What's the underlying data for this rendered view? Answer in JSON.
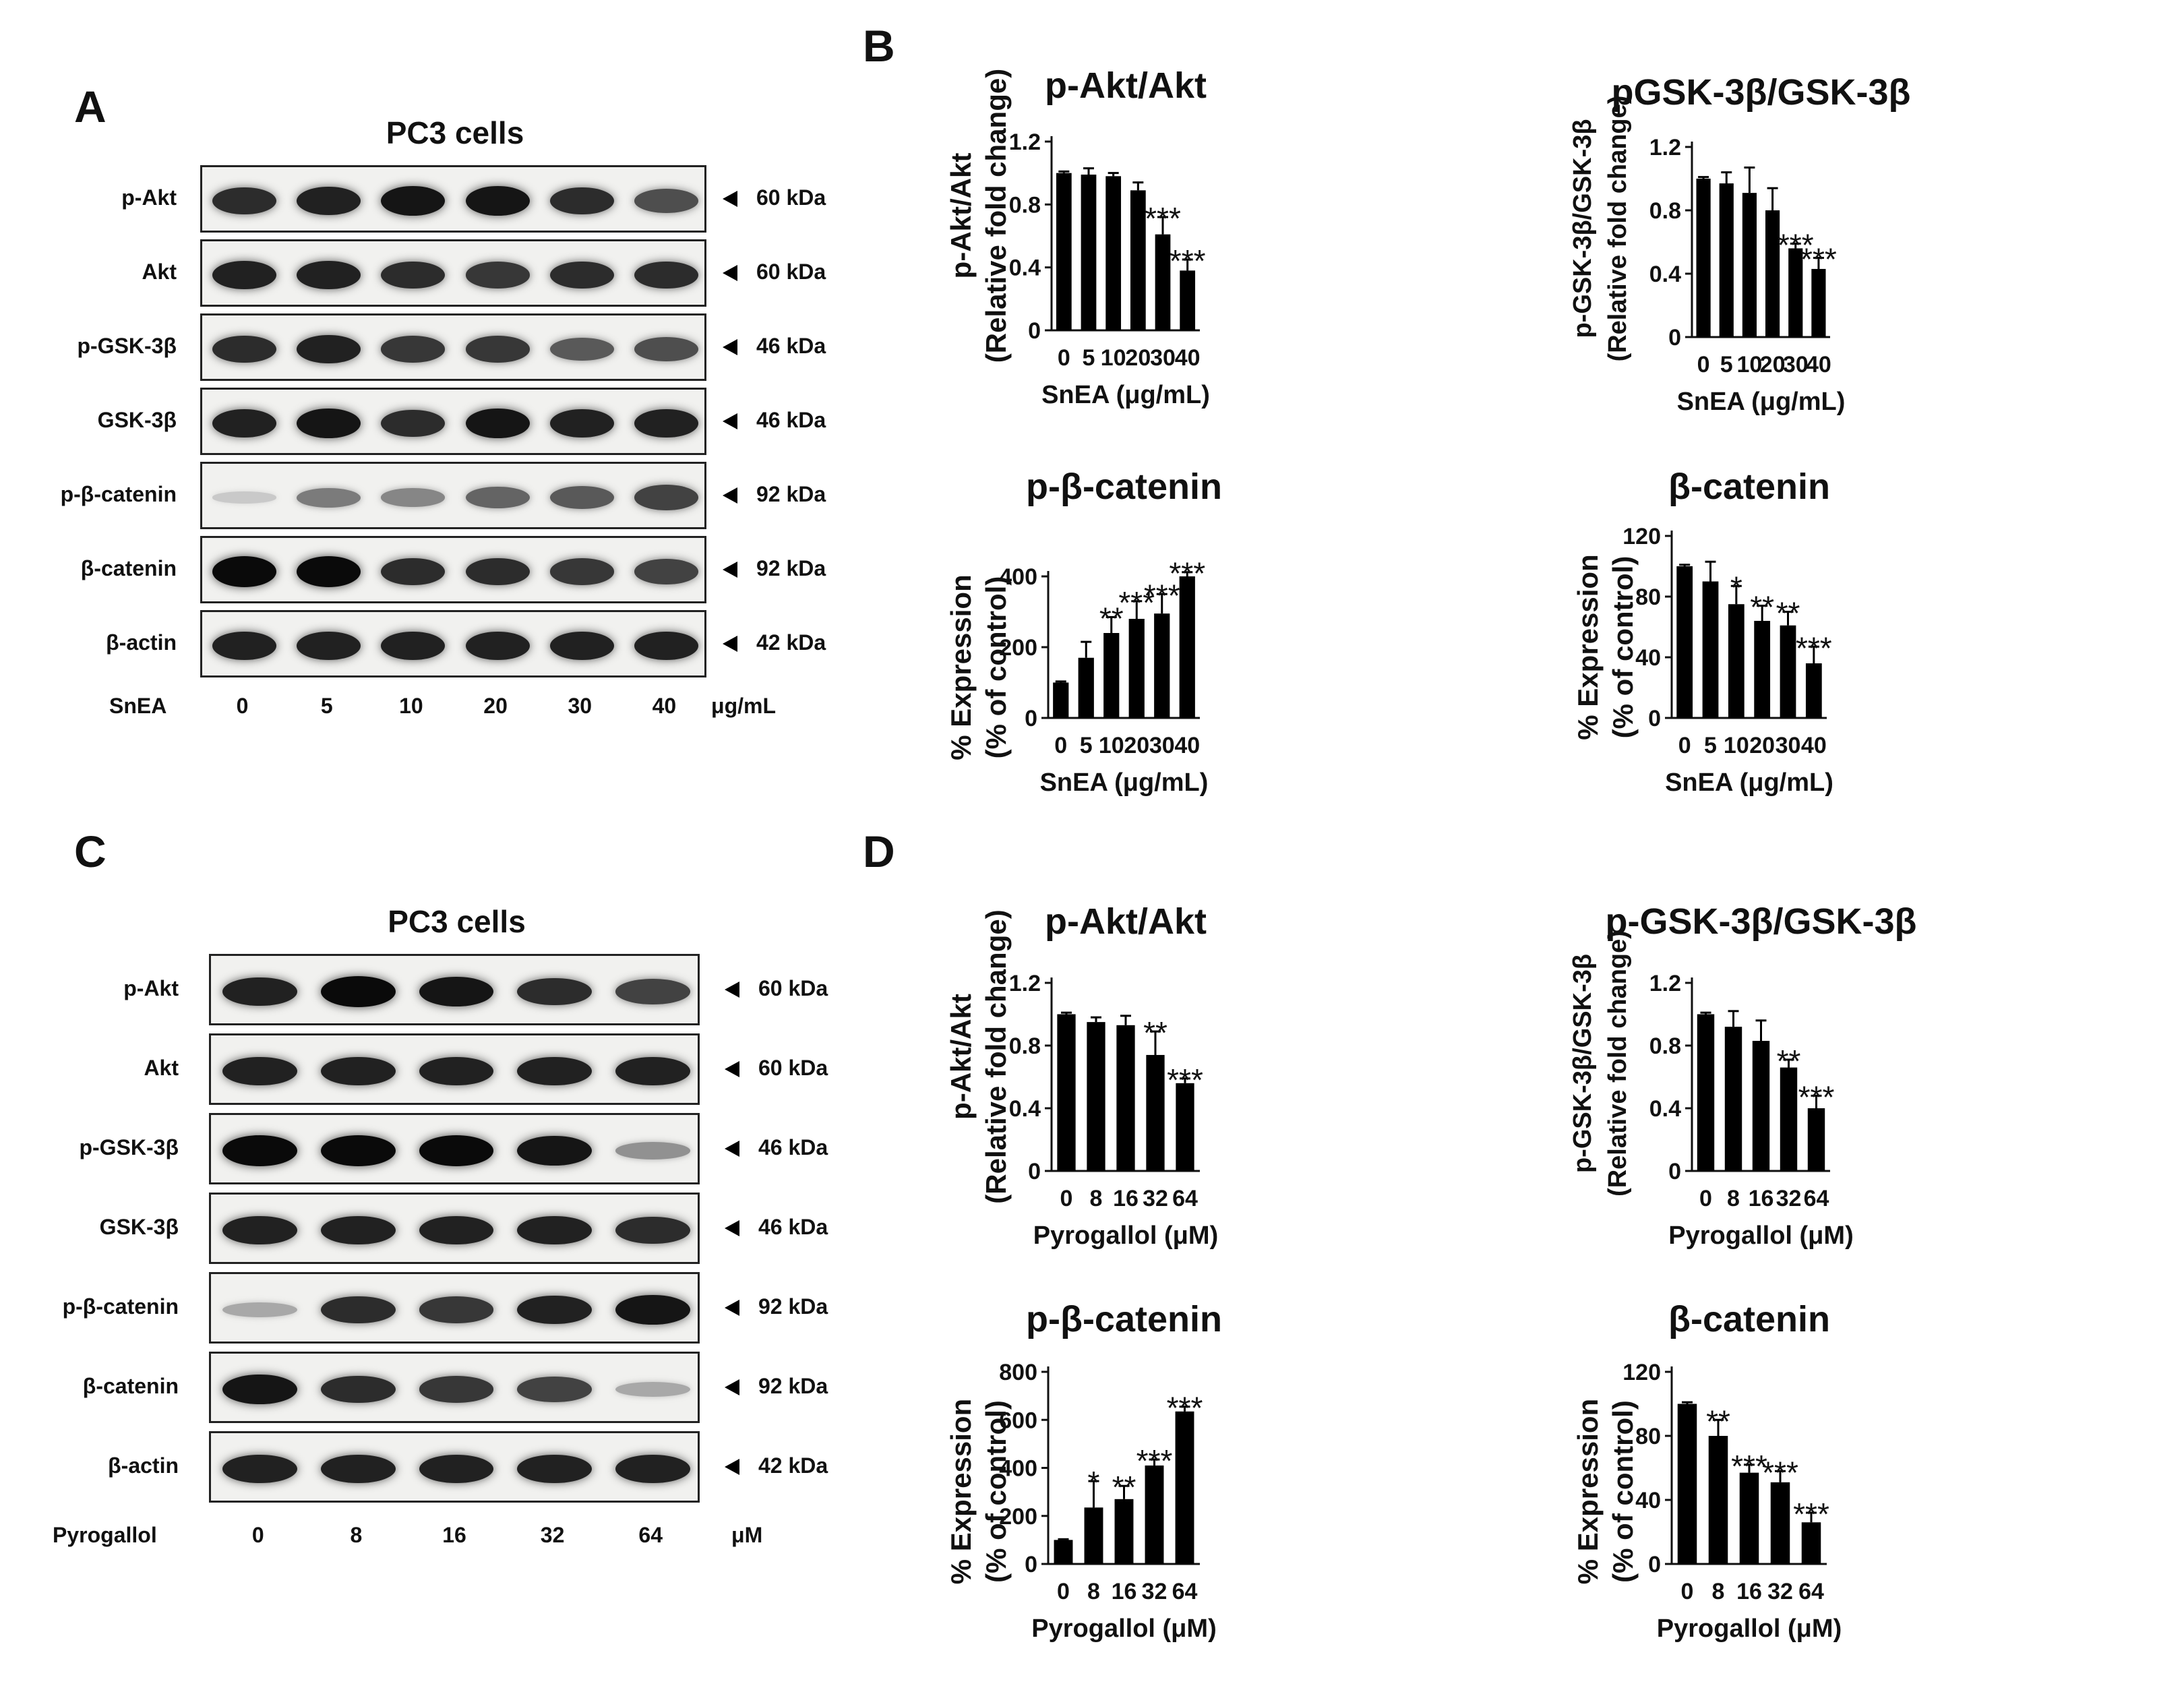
{
  "panels": {
    "A": {
      "letter": "A",
      "title": "PC3 cells",
      "rows": [
        {
          "label": "p-Akt",
          "kda": "60 kDa",
          "intensity": [
            0.85,
            0.9,
            0.95,
            0.95,
            0.85,
            0.7
          ]
        },
        {
          "label": "Akt",
          "kda": "60 kDa",
          "intensity": [
            0.9,
            0.9,
            0.85,
            0.8,
            0.85,
            0.85
          ]
        },
        {
          "label": "p-GSK-3β",
          "kda": "46 kDa",
          "intensity": [
            0.85,
            0.9,
            0.8,
            0.8,
            0.65,
            0.7
          ]
        },
        {
          "label": "GSK-3β",
          "kda": "46 kDa",
          "intensity": [
            0.9,
            0.95,
            0.85,
            0.95,
            0.9,
            0.9
          ]
        },
        {
          "label": "p-β-catenin",
          "kda": "92 kDa",
          "intensity": [
            0.15,
            0.5,
            0.45,
            0.6,
            0.65,
            0.75
          ]
        },
        {
          "label": "β-catenin",
          "kda": "92 kDa",
          "intensity": [
            1.0,
            1.0,
            0.85,
            0.85,
            0.8,
            0.75
          ]
        },
        {
          "label": "β-actin",
          "kda": "42 kDa",
          "intensity": [
            0.9,
            0.9,
            0.9,
            0.9,
            0.9,
            0.9
          ]
        }
      ],
      "treatment": "SnEA",
      "concentrations": [
        "0",
        "5",
        "10",
        "20",
        "30",
        "40"
      ],
      "unit": "μg/mL"
    },
    "B": {
      "letter": "B"
    },
    "C": {
      "letter": "C",
      "title": "PC3 cells",
      "rows": [
        {
          "label": "p-Akt",
          "kda": "60 kDa",
          "intensity": [
            0.9,
            1.0,
            0.95,
            0.85,
            0.75
          ]
        },
        {
          "label": "Akt",
          "kda": "60 kDa",
          "intensity": [
            0.9,
            0.9,
            0.9,
            0.9,
            0.9
          ]
        },
        {
          "label": "p-GSK-3β",
          "kda": "46 kDa",
          "intensity": [
            1.0,
            1.0,
            1.0,
            0.95,
            0.4
          ]
        },
        {
          "label": "GSK-3β",
          "kda": "46 kDa",
          "intensity": [
            0.9,
            0.9,
            0.9,
            0.9,
            0.85
          ]
        },
        {
          "label": "p-β-catenin",
          "kda": "92 kDa",
          "intensity": [
            0.3,
            0.85,
            0.8,
            0.9,
            0.95
          ]
        },
        {
          "label": "β-catenin",
          "kda": "92 kDa",
          "intensity": [
            0.95,
            0.85,
            0.8,
            0.75,
            0.3
          ]
        },
        {
          "label": "β-actin",
          "kda": "42 kDa",
          "intensity": [
            0.9,
            0.9,
            0.9,
            0.9,
            0.9
          ]
        }
      ],
      "treatment": "Pyrogallol",
      "concentrations": [
        "0",
        "8",
        "16",
        "32",
        "64"
      ],
      "unit": "μM"
    },
    "D": {
      "letter": "D"
    }
  },
  "chart_data": [
    {
      "type": "bar",
      "panel": "B",
      "title": "p-Akt/Akt",
      "ylabel": [
        "p-Akt/Akt",
        "(Relative fold change)"
      ],
      "xlabel": "SnEA (μg/mL)",
      "categories": [
        "0",
        "5",
        "10",
        "20",
        "30",
        "40"
      ],
      "values": [
        1.0,
        0.99,
        0.98,
        0.89,
        0.61,
        0.38
      ],
      "errors": [
        0.01,
        0.04,
        0.02,
        0.05,
        0.11,
        0.07
      ],
      "significance": [
        "",
        "",
        "",
        "",
        "***",
        "***"
      ],
      "ylim": [
        0,
        1.2
      ],
      "yticks": [
        "0",
        "0.4",
        "0.8",
        "1.2"
      ]
    },
    {
      "type": "bar",
      "panel": "B",
      "title": "pGSK-3β/GSK-3β",
      "ylabel": [
        "p-GSK-3β/GSK-3β",
        "(Relative fold change)"
      ],
      "xlabel": "SnEA (μg/mL)",
      "categories": [
        "0",
        "5",
        "10",
        "20",
        "30",
        "40"
      ],
      "values": [
        1.0,
        0.97,
        0.91,
        0.8,
        0.56,
        0.43
      ],
      "errors": [
        0.01,
        0.07,
        0.16,
        0.14,
        0.03,
        0.07
      ],
      "significance": [
        "",
        "",
        "",
        "",
        "***",
        "***"
      ],
      "ylim": [
        0,
        1.2
      ],
      "yticks": [
        "0",
        "0.4",
        "0.8",
        "1.2"
      ]
    },
    {
      "type": "bar",
      "panel": "B",
      "title": "p-β-catenin",
      "ylabel": [
        "% Expression",
        "(% of control)"
      ],
      "xlabel": "SnEA (μg/mL)",
      "categories": [
        "0",
        "5",
        "10",
        "20",
        "30",
        "40"
      ],
      "values": [
        100,
        170,
        240,
        280,
        295,
        400
      ],
      "errors": [
        3,
        45,
        45,
        50,
        55,
        12
      ],
      "significance": [
        "",
        "",
        "**",
        "***",
        "***",
        "***"
      ],
      "ylim": [
        0,
        400
      ],
      "yticks": [
        "0",
        "200",
        "400"
      ]
    },
    {
      "type": "bar",
      "panel": "B",
      "title": "β-catenin",
      "ylabel": [
        "% Expression",
        "(% of control)"
      ],
      "xlabel": "SnEA (μg/mL)",
      "categories": [
        "0",
        "5",
        "10",
        "20",
        "30",
        "40"
      ],
      "values": [
        100,
        90,
        75,
        64,
        61,
        36
      ],
      "errors": [
        1,
        13,
        12,
        10,
        9,
        11
      ],
      "significance": [
        "",
        "",
        "*",
        "**",
        "**",
        "***"
      ],
      "ylim": [
        0,
        120
      ],
      "yticks": [
        "0",
        "40",
        "80",
        "120"
      ]
    },
    {
      "type": "bar",
      "panel": "D",
      "title": "p-Akt/Akt",
      "ylabel": [
        "p-Akt/Akt",
        "(Relative fold change)"
      ],
      "xlabel": "Pyrogallol (μM)",
      "categories": [
        "0",
        "8",
        "16",
        "32",
        "64"
      ],
      "values": [
        1.0,
        0.95,
        0.93,
        0.74,
        0.56
      ],
      "errors": [
        0.01,
        0.03,
        0.06,
        0.15,
        0.03
      ],
      "significance": [
        "",
        "",
        "",
        "**",
        "***"
      ],
      "ylim": [
        0,
        1.2
      ],
      "yticks": [
        "0",
        "0.4",
        "0.8",
        "1.2"
      ]
    },
    {
      "type": "bar",
      "panel": "D",
      "title": "p-GSK-3β/GSK-3β",
      "ylabel": [
        "p-GSK-3β/GSK-3β",
        "(Relative fold change)"
      ],
      "xlabel": "Pyrogallol (μM)",
      "categories": [
        "0",
        "8",
        "16",
        "32",
        "64"
      ],
      "values": [
        1.0,
        0.92,
        0.83,
        0.66,
        0.4
      ],
      "errors": [
        0.01,
        0.1,
        0.13,
        0.05,
        0.08
      ],
      "significance": [
        "",
        "",
        "",
        "**",
        "***"
      ],
      "ylim": [
        0,
        1.2
      ],
      "yticks": [
        "0",
        "0.4",
        "0.8",
        "1.2"
      ]
    },
    {
      "type": "bar",
      "panel": "D",
      "title": "p-β-catenin",
      "ylabel": [
        "% Expression",
        "(% of control)"
      ],
      "xlabel": "Pyrogallol (μM)",
      "categories": [
        "0",
        "8",
        "16",
        "32",
        "64"
      ],
      "values": [
        100,
        235,
        270,
        410,
        635
      ],
      "errors": [
        3,
        110,
        55,
        25,
        20
      ],
      "significance": [
        "",
        "*",
        "**",
        "***",
        "***"
      ],
      "ylim": [
        0,
        800
      ],
      "yticks": [
        "0",
        "200",
        "400",
        "600",
        "800"
      ]
    },
    {
      "type": "bar",
      "panel": "D",
      "title": "β-catenin",
      "ylabel": [
        "% Expression",
        "(% of control)"
      ],
      "xlabel": "Pyrogallol (μM)",
      "categories": [
        "0",
        "8",
        "16",
        "32",
        "64"
      ],
      "values": [
        100,
        80,
        57,
        51,
        26
      ],
      "errors": [
        1,
        10,
        5,
        7,
        6
      ],
      "significance": [
        "",
        "**",
        "***",
        "***",
        "***"
      ],
      "ylim": [
        0,
        120
      ],
      "yticks": [
        "0",
        "40",
        "80",
        "120"
      ]
    }
  ]
}
